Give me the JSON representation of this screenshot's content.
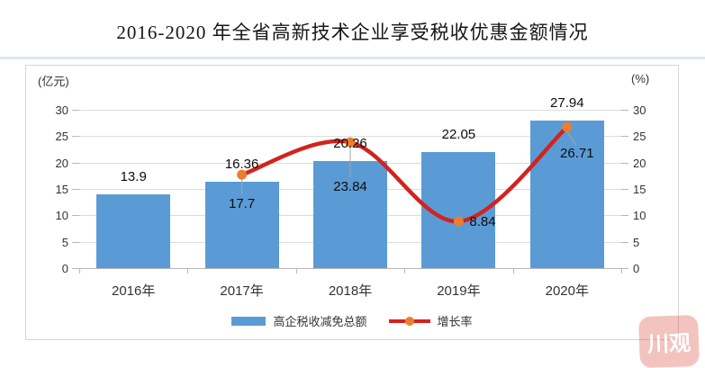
{
  "title": "2016-2020 年全省高新技术企业享受税收优惠金额情况",
  "axes": {
    "left_unit": "(亿元)",
    "right_unit": "(%)",
    "left_ticks": [
      "0",
      "5",
      "10",
      "15",
      "20",
      "25",
      "30"
    ],
    "right_ticks": [
      "0",
      "5",
      "10",
      "15",
      "20",
      "25",
      "30"
    ],
    "x_labels": [
      "2016年",
      "2017年",
      "2018年",
      "2019年",
      "2020年"
    ]
  },
  "legend": {
    "bar_label": "高企税收减免总额",
    "line_label": "增长率"
  },
  "watermark": "川观",
  "colors": {
    "bar": "#5B9BD5",
    "line": "#D2231E",
    "marker": "#ED7D31",
    "grid": "#dcdcdc",
    "leader": "#a6a6a6"
  },
  "chart_data": {
    "type": "bar",
    "title": "2016-2020 年全省高新技术企业享受税收优惠金额情况",
    "categories": [
      "2016年",
      "2017年",
      "2018年",
      "2019年",
      "2020年"
    ],
    "series": [
      {
        "name": "高企税收减免总额",
        "type": "bar",
        "axis": "left",
        "unit": "亿元",
        "values": [
          13.9,
          16.36,
          20.26,
          22.05,
          27.94
        ],
        "labels": [
          "13.9",
          "16.36",
          "20.26",
          "22.05",
          "27.94"
        ]
      },
      {
        "name": "增长率",
        "type": "line",
        "axis": "right",
        "unit": "%",
        "values": [
          null,
          17.7,
          23.84,
          8.84,
          26.71
        ],
        "labels": [
          null,
          "17.7",
          "23.84",
          "8.84",
          "26.71"
        ]
      }
    ],
    "left_axis": {
      "label": "(亿元)",
      "min": 0,
      "max": 30,
      "step": 5
    },
    "right_axis": {
      "label": "(%)",
      "min": 0,
      "max": 30,
      "step": 5
    },
    "grid": true,
    "legend_position": "bottom"
  }
}
